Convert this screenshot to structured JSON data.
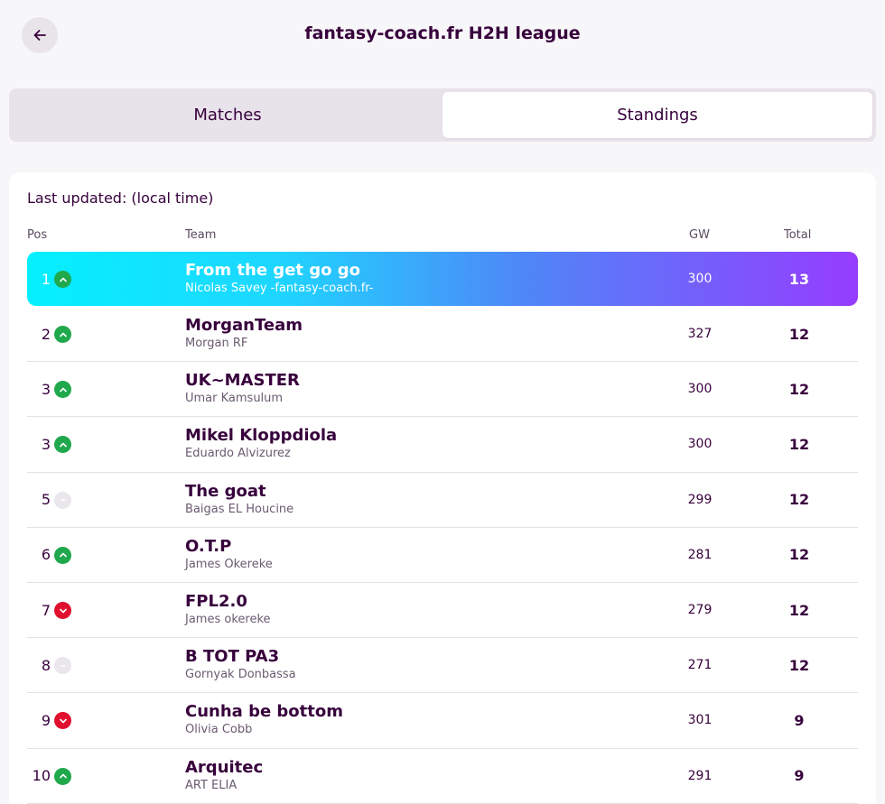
{
  "header": {
    "title": "fantasy-coach.fr H2H league",
    "back_icon": "arrow-left-icon"
  },
  "tabs": [
    {
      "label": "Matches",
      "active": false
    },
    {
      "label": "Standings",
      "active": true
    }
  ],
  "standings": {
    "last_updated": "Last updated:  (local time)",
    "columns": {
      "pos": "Pos",
      "team": "Team",
      "gw": "GW",
      "total": "Total"
    },
    "colors": {
      "up": "#20a84c",
      "down": "#e0102f",
      "same": "#e9e6ec",
      "highlight_start": "#05f0ff",
      "highlight_end": "#963cff"
    },
    "rows": [
      {
        "pos": "1",
        "movement": "up",
        "team": "From the get go go",
        "manager": "Nicolas Savey -fantasy-coach.fr-",
        "gw": "300",
        "total": "13"
      },
      {
        "pos": "2",
        "movement": "up",
        "team": "MorganTeam",
        "manager": "Morgan RF",
        "gw": "327",
        "total": "12"
      },
      {
        "pos": "3",
        "movement": "up",
        "team": "UK~MASTER",
        "manager": "Umar Kamsulum",
        "gw": "300",
        "total": "12"
      },
      {
        "pos": "3",
        "movement": "up",
        "team": "Mikel Kloppdiola",
        "manager": "Eduardo Alvizurez",
        "gw": "300",
        "total": "12"
      },
      {
        "pos": "5",
        "movement": "same",
        "team": "The goat",
        "manager": "Baigas EL Houcine",
        "gw": "299",
        "total": "12"
      },
      {
        "pos": "6",
        "movement": "up",
        "team": "O.T.P",
        "manager": "James Okereke",
        "gw": "281",
        "total": "12"
      },
      {
        "pos": "7",
        "movement": "down",
        "team": "FPL2.0",
        "manager": "James okereke",
        "gw": "279",
        "total": "12"
      },
      {
        "pos": "8",
        "movement": "same",
        "team": "B TOT PA3",
        "manager": "Gornyak Donbassa",
        "gw": "271",
        "total": "12"
      },
      {
        "pos": "9",
        "movement": "down",
        "team": "Cunha be bottom",
        "manager": "Olivia Cobb",
        "gw": "301",
        "total": "9"
      },
      {
        "pos": "10",
        "movement": "up",
        "team": "Arquitec",
        "manager": "ART ELIA",
        "gw": "291",
        "total": "9"
      }
    ]
  }
}
